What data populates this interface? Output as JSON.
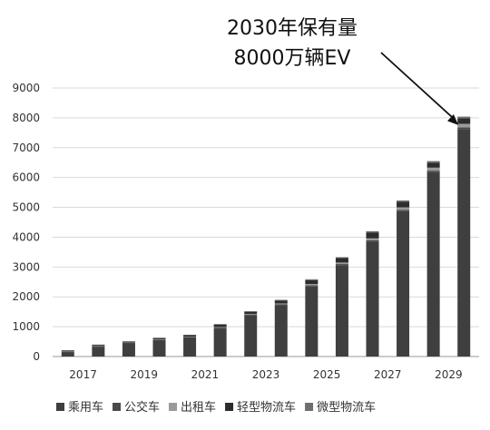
{
  "chart_data": {
    "type": "bar",
    "stacked": true,
    "title_lines": [
      "2030年保有量",
      "8000万辆EV"
    ],
    "x": [
      2017,
      2018,
      2019,
      2020,
      2021,
      2022,
      2023,
      2024,
      2025,
      2026,
      2027,
      2028,
      2029,
      2030
    ],
    "x_tick_labels": [
      "2017",
      "2019",
      "2021",
      "2023",
      "2025",
      "2027",
      "2029"
    ],
    "y_ticks": [
      0,
      1000,
      2000,
      3000,
      4000,
      5000,
      6000,
      7000,
      8000,
      9000
    ],
    "ylim": [
      0,
      9000
    ],
    "grid": true,
    "legend_position": "bottom",
    "series": [
      {
        "name": "乘用车",
        "color": "#3f3f3f",
        "values": [
          150,
          330,
          440,
          550,
          640,
          940,
          1380,
          1720,
          2350,
          3060,
          3850,
          4870,
          6180,
          7620
        ]
      },
      {
        "name": "公交车",
        "color": "#4a4a4a",
        "values": [
          20,
          20,
          20,
          20,
          20,
          30,
          30,
          30,
          40,
          40,
          50,
          50,
          50,
          60
        ]
      },
      {
        "name": "出租车",
        "color": "#9a9a9a",
        "values": [
          10,
          10,
          10,
          10,
          10,
          20,
          20,
          30,
          40,
          50,
          60,
          80,
          100,
          120
        ]
      },
      {
        "name": "轻型物流车",
        "color": "#2c2c2c",
        "values": [
          20,
          30,
          30,
          40,
          50,
          80,
          70,
          100,
          130,
          150,
          200,
          190,
          170,
          180
        ]
      },
      {
        "name": "微型物流车",
        "color": "#6e6e6e",
        "values": [
          10,
          10,
          10,
          10,
          10,
          20,
          20,
          20,
          30,
          30,
          40,
          40,
          50,
          60
        ]
      }
    ],
    "annotation": {
      "target_x": 2030,
      "target_value": 8000
    }
  }
}
